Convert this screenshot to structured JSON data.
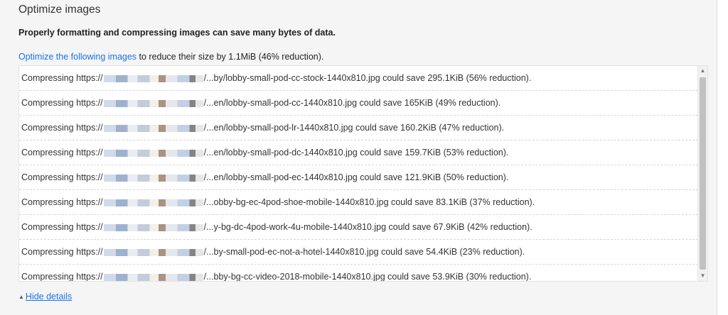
{
  "section": {
    "title": "Optimize images",
    "subtitle": "Properly formatting and compressing images can save many bytes of data.",
    "summary": {
      "link_text": "Optimize the following images",
      "rest_text": " to reduce their size by 1.1MiB (46% reduction)."
    }
  },
  "rows": [
    {
      "prefix": "Compressing https://",
      "suffix": "/...by/lobby-small-pod-cc-stock-1440x810.jpg could save 295.1KiB (56% reduction)."
    },
    {
      "prefix": "Compressing https://",
      "suffix": "/...en/lobby-small-pod-cc-1440x810.jpg could save 165KiB (49% reduction)."
    },
    {
      "prefix": "Compressing https://",
      "suffix": "/...en/lobby-small-pod-lr-1440x810.jpg could save 160.2KiB (47% reduction)."
    },
    {
      "prefix": "Compressing https://",
      "suffix": "/...en/lobby-small-pod-dc-1440x810.jpg could save 159.7KiB (53% reduction)."
    },
    {
      "prefix": "Compressing https://",
      "suffix": "/...en/lobby-small-pod-ec-1440x810.jpg could save 121.9KiB (50% reduction)."
    },
    {
      "prefix": "Compressing https://",
      "suffix": "/...obby-bg-ec-4pod-shoe-mobile-1440x810.jpg could save 83.1KiB (37% reduction)."
    },
    {
      "prefix": "Compressing https://",
      "suffix": "/...y-bg-dc-4pod-work-4u-mobile-1440x810.jpg could save 67.9KiB (42% reduction)."
    },
    {
      "prefix": "Compressing https://",
      "suffix": "/...by-small-pod-ec-not-a-hotel-1440x810.jpg could save 54.4KiB (23% reduction)."
    },
    {
      "prefix": "Compressing https://",
      "suffix": "/...bby-bg-cc-video-2018-mobile-1440x810.jpg could save 53.9KiB (30% reduction)."
    }
  ],
  "scrollbar": {
    "up_glyph": "▲",
    "down_glyph": "▼"
  },
  "hide_details": {
    "arrow": "▲",
    "label": "Hide details"
  }
}
